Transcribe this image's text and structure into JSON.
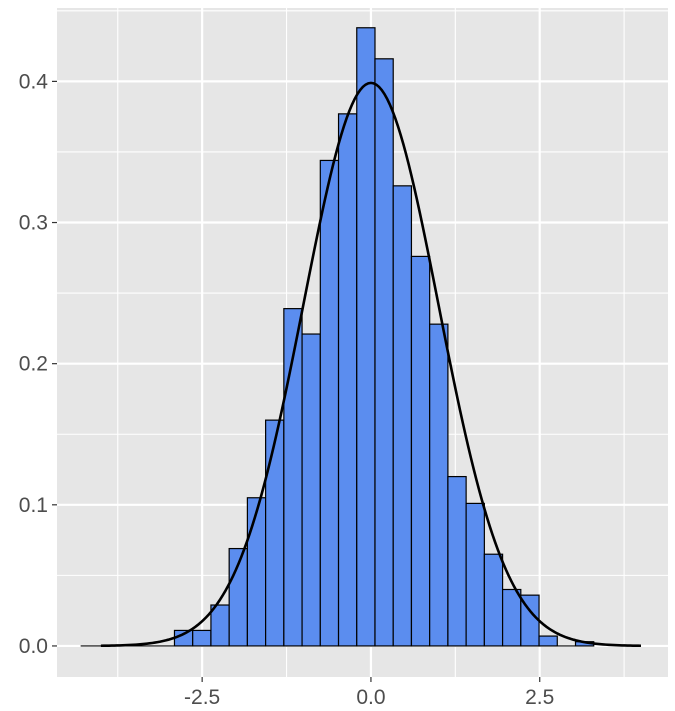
{
  "chart_data": {
    "type": "bar",
    "title": "",
    "xlabel": "",
    "ylabel": "",
    "xlim": [
      -4.65,
      4.4
    ],
    "ylim": [
      -0.022,
      0.452
    ],
    "bin_width": 0.27,
    "bins": [
      {
        "x0": -2.91,
        "x1": -2.64,
        "density": 0.011
      },
      {
        "x0": -2.64,
        "x1": -2.37,
        "density": 0.011
      },
      {
        "x0": -2.37,
        "x1": -2.1,
        "density": 0.029
      },
      {
        "x0": -2.1,
        "x1": -1.83,
        "density": 0.069
      },
      {
        "x0": -1.83,
        "x1": -1.56,
        "density": 0.105
      },
      {
        "x0": -1.56,
        "x1": -1.29,
        "density": 0.16
      },
      {
        "x0": -1.29,
        "x1": -1.02,
        "density": 0.239
      },
      {
        "x0": -1.02,
        "x1": -0.75,
        "density": 0.221
      },
      {
        "x0": -0.75,
        "x1": -0.48,
        "density": 0.344
      },
      {
        "x0": -0.48,
        "x1": -0.21,
        "density": 0.377
      },
      {
        "x0": -0.21,
        "x1": 0.06,
        "density": 0.438
      },
      {
        "x0": 0.06,
        "x1": 0.33,
        "density": 0.416
      },
      {
        "x0": 0.33,
        "x1": 0.6,
        "density": 0.326
      },
      {
        "x0": 0.6,
        "x1": 0.87,
        "density": 0.276
      },
      {
        "x0": 0.87,
        "x1": 1.14,
        "density": 0.228
      },
      {
        "x0": 1.14,
        "x1": 1.41,
        "density": 0.12
      },
      {
        "x0": 1.41,
        "x1": 1.68,
        "density": 0.101
      },
      {
        "x0": 1.68,
        "x1": 1.95,
        "density": 0.065
      },
      {
        "x0": 1.95,
        "x1": 2.22,
        "density": 0.04
      },
      {
        "x0": 2.22,
        "x1": 2.49,
        "density": 0.036
      },
      {
        "x0": 2.49,
        "x1": 2.76,
        "density": 0.007
      },
      {
        "x0": 2.76,
        "x1": 3.03,
        "density": 0.0
      },
      {
        "x0": 3.03,
        "x1": 3.3,
        "density": 0.003
      }
    ],
    "baseline_segments": [
      {
        "x0": -4.3,
        "x1": -2.91
      },
      {
        "x0": 2.76,
        "x1": 3.03
      }
    ],
    "curve": {
      "name": "",
      "type": "normal_density",
      "mean": 0,
      "sd": 1,
      "x_range": [
        -4,
        4
      ]
    },
    "x_ticks": [
      {
        "value": -2.5,
        "label": "-2.5"
      },
      {
        "value": 0.0,
        "label": "0.0"
      },
      {
        "value": 2.5,
        "label": "2.5"
      }
    ],
    "y_ticks": [
      {
        "value": 0.0,
        "label": "0.0"
      },
      {
        "value": 0.1,
        "label": "0.1"
      },
      {
        "value": 0.2,
        "label": "0.2"
      },
      {
        "value": 0.3,
        "label": "0.3"
      },
      {
        "value": 0.4,
        "label": "0.4"
      }
    ],
    "grid": true,
    "legend": "none",
    "colors": {
      "panel_background": "#e6e6e6",
      "grid": "#ffffff",
      "bar_fill": "#5b8def",
      "bar_outline": "#000000",
      "curve": "#000000",
      "tick_text": "#4d4d4d",
      "tick_mark": "#333333"
    }
  }
}
